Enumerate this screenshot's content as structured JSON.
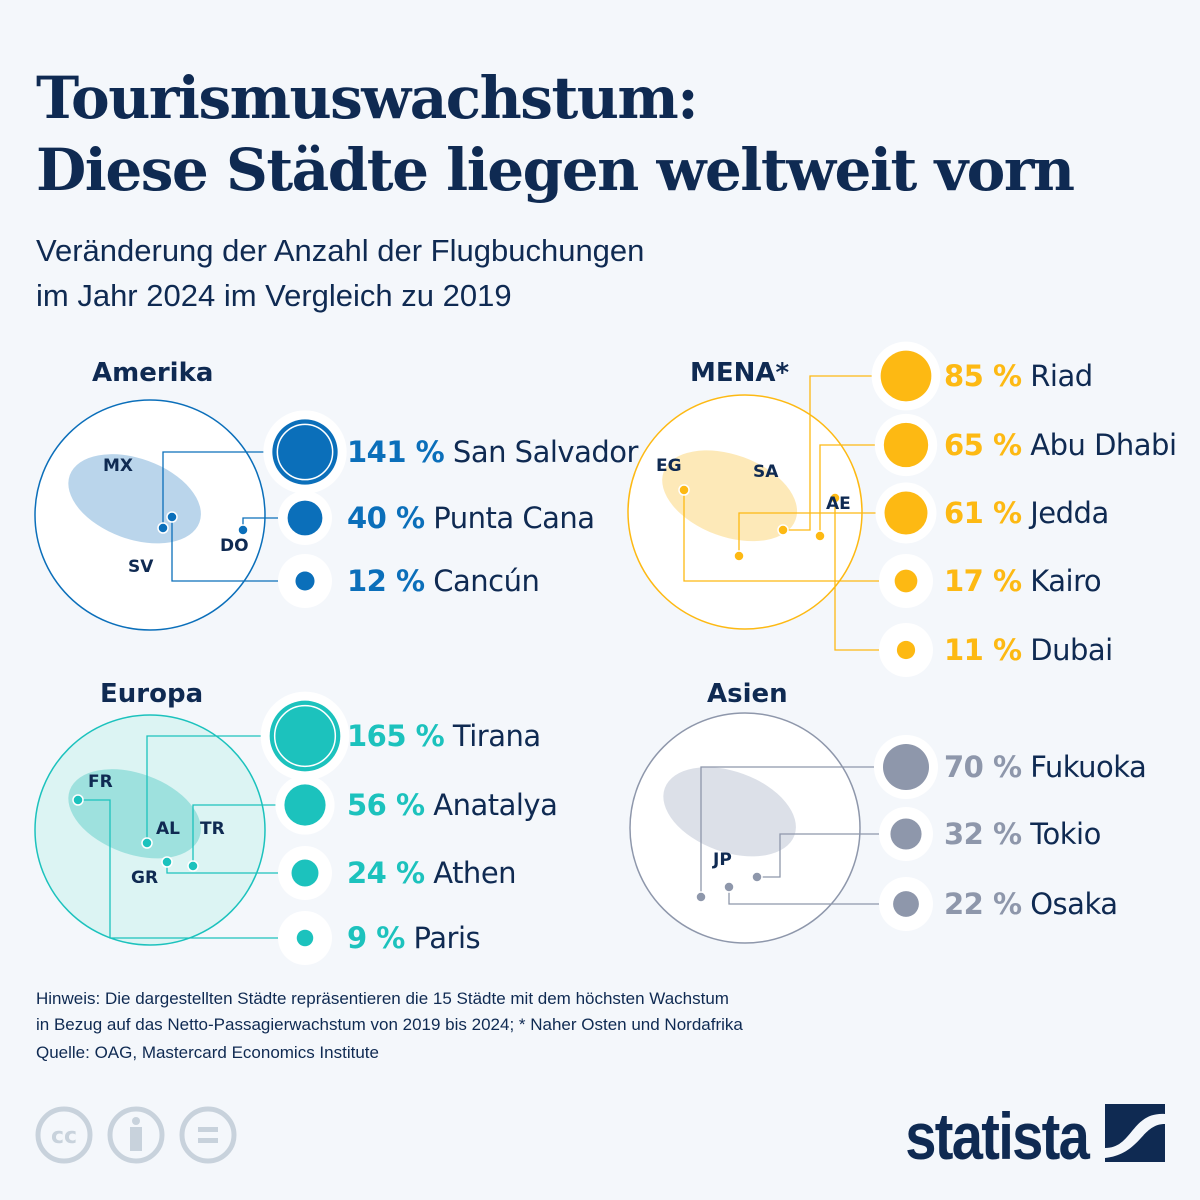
{
  "title_line1": "Tourismuswachstum:",
  "title_line2": "Diese Städte liegen weltweit vorn",
  "subtitle_line1": "Veränderung der Anzahl der Flugbuchungen",
  "subtitle_line2": "im Jahr 2024 im Vergleich zu 2019",
  "colors": {
    "Amerika": "#0b6fba",
    "MENA": "#fdb913",
    "Europa": "#1cc2bd",
    "Asien": "#8e97ab",
    "text": "#0f2a52"
  },
  "chart_data": {
    "type": "bubble",
    "unit": "%",
    "regions": [
      {
        "name": "Amerika",
        "map_labels": [
          "MX",
          "SV",
          "DO"
        ],
        "cities": [
          {
            "value": 141,
            "value_label": "141 %",
            "city": "San Salvador"
          },
          {
            "value": 40,
            "value_label": "40 %",
            "city": "Punta Cana"
          },
          {
            "value": 12,
            "value_label": "12 %",
            "city": "Cancún"
          }
        ]
      },
      {
        "name": "MENA*",
        "map_labels": [
          "EG",
          "SA",
          "AE"
        ],
        "cities": [
          {
            "value": 85,
            "value_label": "85 %",
            "city": "Riad"
          },
          {
            "value": 65,
            "value_label": "65 %",
            "city": "Abu Dhabi"
          },
          {
            "value": 61,
            "value_label": "61 %",
            "city": "Jedda"
          },
          {
            "value": 17,
            "value_label": "17 %",
            "city": "Kairo"
          },
          {
            "value": 11,
            "value_label": "11 %",
            "city": "Dubai"
          }
        ]
      },
      {
        "name": "Europa",
        "map_labels": [
          "FR",
          "AL",
          "TR",
          "GR"
        ],
        "cities": [
          {
            "value": 165,
            "value_label": "165 %",
            "city": "Tirana"
          },
          {
            "value": 56,
            "value_label": "56 %",
            "city": "Anatalya"
          },
          {
            "value": 24,
            "value_label": "24 %",
            "city": "Athen"
          },
          {
            "value": 9,
            "value_label": "9 %",
            "city": "Paris"
          }
        ]
      },
      {
        "name": "Asien",
        "map_labels": [
          "JP"
        ],
        "cities": [
          {
            "value": 70,
            "value_label": "70 %",
            "city": "Fukuoka"
          },
          {
            "value": 32,
            "value_label": "32 %",
            "city": "Tokio"
          },
          {
            "value": 22,
            "value_label": "22 %",
            "city": "Osaka"
          }
        ]
      }
    ]
  },
  "note_line1": "Hinweis: Die dargestellten Städte repräsentieren die 15 Städte mit dem höchsten Wachstum",
  "note_line2": "in Bezug auf das Netto-Passagierwachstum von 2019 bis 2024; * Naher Osten und Nordafrika",
  "source": "Quelle: OAG, Mastercard Economics Institute",
  "logo": "statista",
  "license_icons": [
    "cc-icon",
    "attribution-icon",
    "no-derivatives-icon"
  ]
}
